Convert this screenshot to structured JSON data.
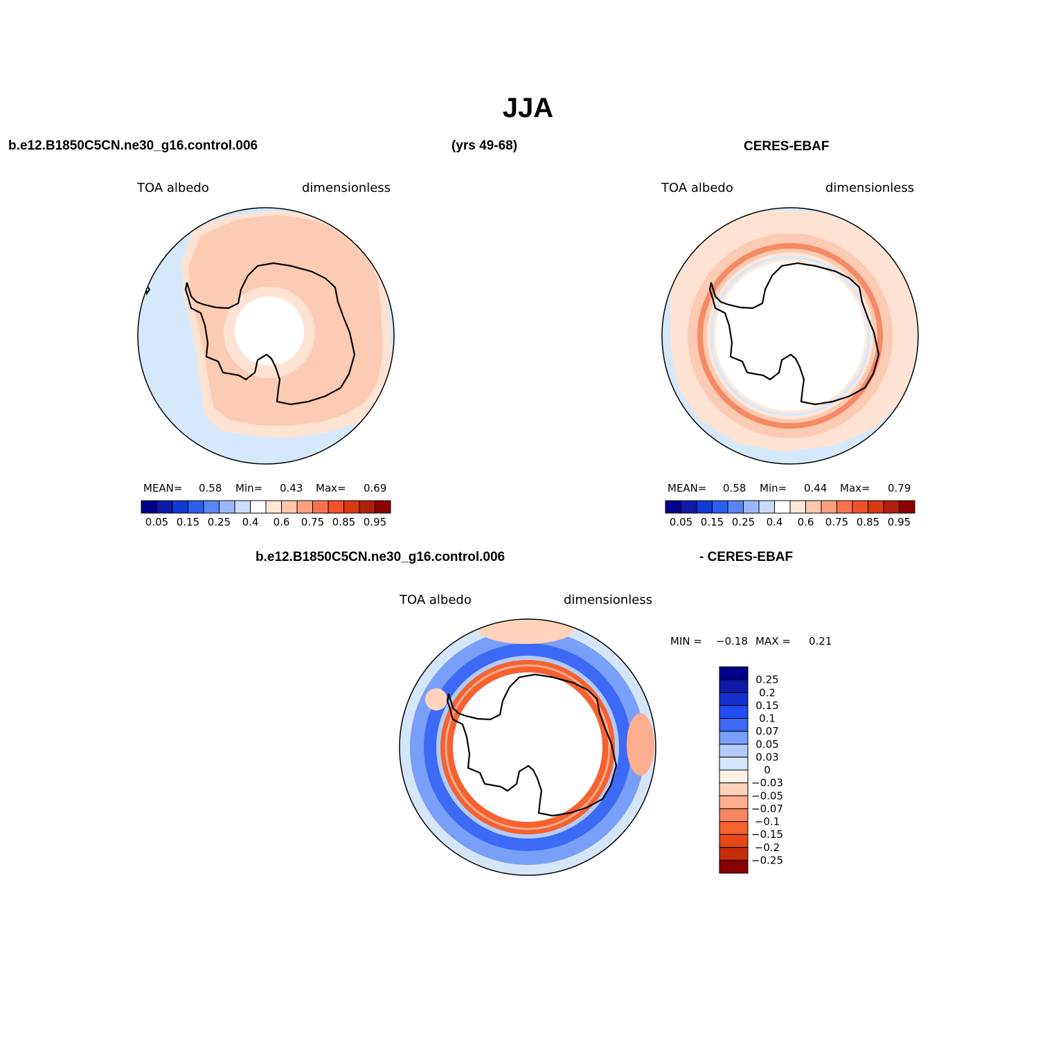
{
  "title": "JJA",
  "top_left": {
    "case_name": "b.e12.B1850C5CN.ne30_g16.control.006",
    "years": "(yrs 49-68)",
    "variable": "TOA albedo",
    "units": "dimensionless",
    "mean_label": "MEAN=",
    "mean": "0.58",
    "min_label": "Min=",
    "min": "0.43",
    "max_label": "Max=",
    "max": "0.69"
  },
  "top_right": {
    "obs_name": "CERES-EBAF",
    "variable": "TOA albedo",
    "units": "dimensionless",
    "mean_label": "MEAN=",
    "mean": "0.58",
    "min_label": "Min=",
    "min": "0.44",
    "max_label": "Max=",
    "max": "0.79"
  },
  "diff": {
    "case_name": "b.e12.B1850C5CN.ne30_g16.control.006",
    "obs_name": "- CERES-EBAF",
    "variable": "TOA albedo",
    "units": "dimensionless",
    "min_label": "MIN =",
    "min": "−0.18",
    "max_label": "MAX =",
    "max": "0.21"
  },
  "abs_colorbar": {
    "colors": [
      "#00008b",
      "#0f1aa8",
      "#0f3ad6",
      "#2a5ff0",
      "#5a85f5",
      "#9ab7f9",
      "#c9dcf9",
      "#ffffff",
      "#ffe6d6",
      "#ffc6ae",
      "#fca07e",
      "#f77350",
      "#f0502a",
      "#d83a12",
      "#b11f0d",
      "#8b0000"
    ],
    "tick_labels": [
      "0.05",
      "0.15",
      "0.25",
      "0.4",
      "0.6",
      "0.75",
      "0.85",
      "0.95"
    ]
  },
  "diff_colorbar": {
    "colors": [
      "#00008b",
      "#0f1aa8",
      "#1430d0",
      "#1f4ef0",
      "#3c6af5",
      "#7a9ff8",
      "#b3cbfa",
      "#d6e6fa",
      "#fff1e6",
      "#ffd2bc",
      "#fcae8e",
      "#f8855f",
      "#f5612f",
      "#e64819",
      "#c52d0d",
      "#8b0000"
    ],
    "tick_labels": [
      "0.25",
      "0.2",
      "0.15",
      "0.1",
      "0.07",
      "0.05",
      "0.03",
      "0",
      "−0.03",
      "−0.05",
      "−0.07",
      "−0.1",
      "−0.15",
      "−0.2",
      "−0.25"
    ]
  }
}
